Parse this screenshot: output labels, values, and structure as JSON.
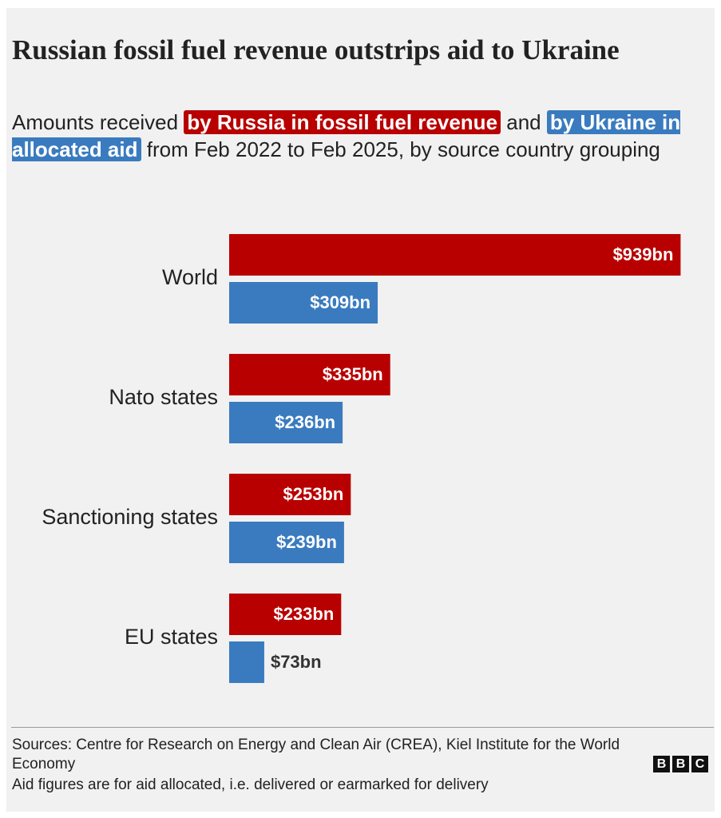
{
  "chart_data": {
    "type": "grouped-hbar",
    "title": "Russian fossil fuel revenue outstrips aid to Ukraine",
    "subtitle_parts": [
      "Amounts received",
      "and",
      "from Feb 2022 to Feb 2025, by source country grouping"
    ],
    "categories": [
      "World",
      "Nato states",
      "Sanctioning states",
      "EU states"
    ],
    "series": [
      {
        "name": "by Russia in fossil fuel revenue",
        "color": "#b80000",
        "values": [
          939,
          335,
          253,
          233
        ],
        "value_labels": [
          "$939bn",
          "$335bn",
          "$253bn",
          "$233bn"
        ]
      },
      {
        "name": "by Ukraine in allocated aid",
        "color": "#3a7bbf",
        "values": [
          309,
          236,
          239,
          73
        ],
        "value_labels": [
          "$309bn",
          "$236bn",
          "$239bn",
          "$73bn"
        ]
      }
    ],
    "xlim": [
      0,
      940
    ],
    "sources": "Sources: Centre for Research on Energy and Clean Air (CREA), Kiel Institute for the World Economy",
    "note": "Aid figures are for aid allocated, i.e. delivered or earmarked for delivery",
    "logo": [
      "B",
      "B",
      "C"
    ]
  }
}
